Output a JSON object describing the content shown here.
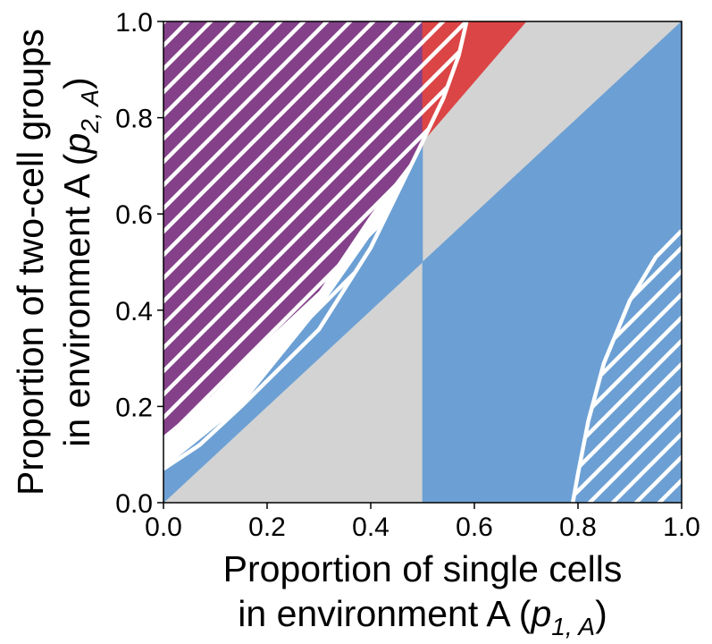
{
  "chart_data": {
    "type": "area",
    "title": "",
    "xlabel_lines": [
      "Proportion of single cells",
      "in environment A ("
    ],
    "xlabel_math": {
      "base": "p",
      "sub": "1, A",
      "close": ")"
    },
    "ylabel_lines": [
      "Proportion of two-cell groups",
      "in environment A ("
    ],
    "ylabel_math": {
      "base": "p",
      "sub": "2, A",
      "close": ")"
    },
    "xlim": [
      0,
      1
    ],
    "ylim": [
      0,
      1
    ],
    "xticks": [
      "0.0",
      "0.2",
      "0.4",
      "0.6",
      "0.8",
      "1.0"
    ],
    "yticks": [
      "0.0",
      "0.2",
      "0.4",
      "0.6",
      "0.8",
      "1.0"
    ],
    "grid": false,
    "regions": [
      {
        "color": "#d3d3d3",
        "vertices": [
          [
            0,
            0
          ],
          [
            0.5,
            0.5
          ],
          [
            0.5,
            0
          ]
        ]
      },
      {
        "color": "#d3d3d3",
        "vertices": [
          [
            0.5,
            0.5
          ],
          [
            0.5,
            0.75
          ],
          [
            0.7,
            1.0
          ],
          [
            1.0,
            1.0
          ]
        ]
      },
      {
        "color": "#6ca0d4",
        "vertices": [
          [
            0,
            0
          ],
          [
            0.5,
            0.5
          ],
          [
            0.5,
            0.74
          ],
          [
            0.43,
            0.6
          ],
          [
            0.3,
            0.4
          ],
          [
            0.15,
            0.2
          ],
          [
            0,
            0.07
          ]
        ]
      },
      {
        "color": "#6ca0d4",
        "vertices": [
          [
            0.5,
            0
          ],
          [
            1.0,
            0
          ],
          [
            1.0,
            1.0
          ],
          [
            0.5,
            0.5
          ]
        ]
      },
      {
        "color": "#84418a",
        "vertices": [
          [
            0,
            0.14
          ],
          [
            0.09,
            0.22
          ],
          [
            0.2,
            0.34
          ],
          [
            0.3,
            0.44
          ],
          [
            0.4,
            0.6
          ],
          [
            0.5,
            0.74
          ],
          [
            0.5,
            1.0
          ],
          [
            0,
            1.0
          ]
        ]
      },
      {
        "color": "#dc4545",
        "vertices": [
          [
            0.5,
            0.75
          ],
          [
            0.5,
            1.0
          ],
          [
            0.7,
            1.0
          ]
        ]
      }
    ],
    "hatched_regions": [
      {
        "boundary": [
          [
            0,
            0.07
          ],
          [
            0.07,
            0.12
          ],
          [
            0.15,
            0.2
          ],
          [
            0.3,
            0.36
          ],
          [
            0.4,
            0.53
          ],
          [
            0.5,
            0.75
          ],
          [
            0.54,
            0.84
          ],
          [
            0.57,
            0.93
          ],
          [
            0.585,
            1.0
          ]
        ],
        "side": "upper-left"
      },
      {
        "boundary": [
          [
            0.79,
            0
          ],
          [
            0.8,
            0.06
          ],
          [
            0.82,
            0.17
          ],
          [
            0.85,
            0.29
          ],
          [
            0.9,
            0.42
          ],
          [
            0.95,
            0.51
          ],
          [
            1.0,
            0.565
          ]
        ],
        "side": "lower-right"
      }
    ]
  }
}
